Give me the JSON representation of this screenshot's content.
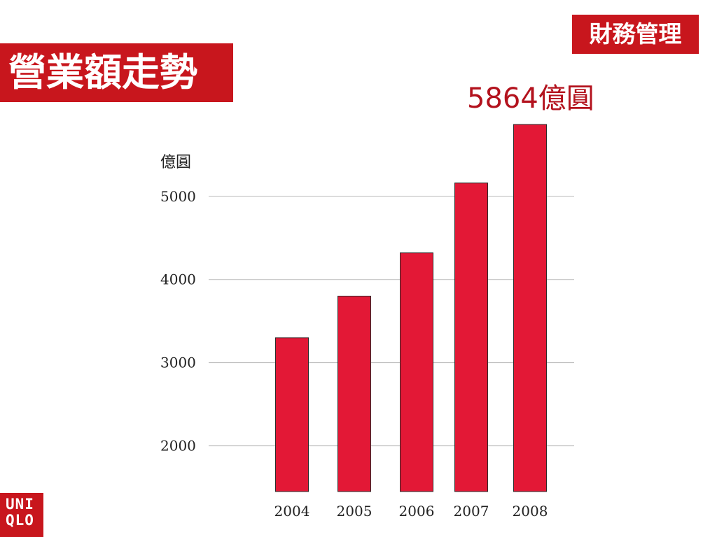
{
  "header": {
    "title": "營業額走勢",
    "badge": "財務管理",
    "highlight": "5864億圓"
  },
  "logo": {
    "line1": "UNI",
    "line2": "QLO"
  },
  "colors": {
    "accent": "#c8161d",
    "bar": "#e31836",
    "highlight_text": "#b3121d"
  },
  "chart_data": {
    "type": "bar",
    "title": "",
    "xlabel": "",
    "ylabel": "億圓",
    "categories": [
      "2004",
      "2005",
      "2006",
      "2007",
      "2008"
    ],
    "values": [
      3300,
      3800,
      4320,
      5160,
      5864
    ],
    "yticks": [
      2000,
      3000,
      4000,
      5000
    ],
    "ylim": [
      1450,
      5864
    ],
    "grid": true,
    "legend": "none"
  }
}
